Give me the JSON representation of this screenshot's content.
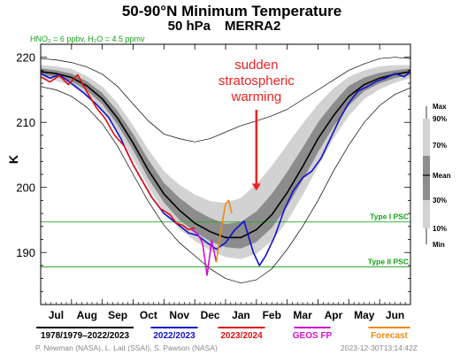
{
  "chart_data": {
    "type": "line",
    "title": "50-90°N Minimum Temperature",
    "subtitle_left": "50 hPa",
    "subtitle_right": "MERRA2",
    "conditions_label": "HNO₃ = 6 ppbv, H₂O = 4.5 ppmv",
    "ylabel": "K",
    "ylim": [
      182,
      222
    ],
    "yticks": [
      190,
      200,
      210,
      220
    ],
    "months": [
      "Jul",
      "Aug",
      "Sep",
      "Oct",
      "Nov",
      "Dec",
      "Jan",
      "Feb",
      "Mar",
      "Apr",
      "May",
      "Jun"
    ],
    "x_unit": "month index (0 = 1 Jul)",
    "psc_lines": [
      {
        "label": "Type I PSC",
        "value": 194.7
      },
      {
        "label": "Type II PSC",
        "value": 187.8
      }
    ],
    "percentile_legend": {
      "labels": [
        "Max",
        "90%",
        "70%",
        "Mean",
        "30%",
        "10%",
        "Min"
      ]
    },
    "annotation": {
      "text": [
        "sudden",
        "stratospheric",
        "warming"
      ],
      "x": 7.0,
      "y": 199.5
    },
    "climatology": {
      "x": [
        0,
        0.5,
        1,
        1.5,
        2,
        2.5,
        3,
        3.5,
        4,
        4.5,
        5,
        5.5,
        6,
        6.5,
        7,
        7.5,
        8,
        8.5,
        9,
        9.5,
        10,
        10.5,
        11,
        11.5,
        12
      ],
      "mean": [
        217.8,
        217.5,
        216.9,
        215.6,
        213.6,
        210.6,
        206.8,
        202.6,
        199.0,
        196.5,
        194.5,
        193.2,
        192.3,
        192.3,
        193.5,
        195.8,
        199.2,
        203.2,
        207.5,
        211.0,
        214.0,
        215.8,
        216.8,
        217.4,
        217.8
      ],
      "p10": [
        216.8,
        216.4,
        215.6,
        214.1,
        211.8,
        208.5,
        204.4,
        200.0,
        196.3,
        193.6,
        191.8,
        190.3,
        189.3,
        189.0,
        189.8,
        191.8,
        194.8,
        198.8,
        203.2,
        207.5,
        211.0,
        213.6,
        215.1,
        216.1,
        216.8
      ],
      "p30": [
        217.3,
        217.0,
        216.3,
        214.9,
        212.8,
        209.6,
        205.7,
        201.3,
        197.7,
        195.0,
        193.2,
        191.7,
        190.8,
        190.6,
        191.6,
        193.8,
        197.1,
        201.1,
        205.4,
        209.3,
        212.6,
        214.8,
        216.0,
        216.8,
        217.3
      ],
      "p70": [
        218.3,
        218.0,
        217.5,
        216.3,
        214.5,
        211.7,
        208.2,
        204.2,
        200.7,
        198.4,
        196.6,
        195.3,
        194.4,
        194.7,
        196.3,
        199.0,
        202.4,
        206.1,
        210.0,
        213.0,
        215.6,
        216.9,
        217.6,
        218.0,
        218.3
      ],
      "p90": [
        218.8,
        218.6,
        218.2,
        217.1,
        215.5,
        212.9,
        209.5,
        205.8,
        202.5,
        200.4,
        198.9,
        197.9,
        197.6,
        198.4,
        200.5,
        203.3,
        206.6,
        209.8,
        212.8,
        215.2,
        217.0,
        218.0,
        218.6,
        218.8,
        218.8
      ],
      "max": [
        219.8,
        219.6,
        219.2,
        218.5,
        217.4,
        215.5,
        212.8,
        210.2,
        208.2,
        207.5,
        207.0,
        207.5,
        208.5,
        209.5,
        210.2,
        211.0,
        212.0,
        213.5,
        215.0,
        216.5,
        218.0,
        219.0,
        219.8,
        220.0,
        219.8
      ],
      "min": [
        215.5,
        215.0,
        214.0,
        212.3,
        209.8,
        206.3,
        202.0,
        197.8,
        194.2,
        191.5,
        189.5,
        187.5,
        186.0,
        185.3,
        185.8,
        187.5,
        190.5,
        194.0,
        198.0,
        202.5,
        206.5,
        210.0,
        212.6,
        214.3,
        215.3
      ]
    },
    "series": [
      {
        "name": "2022/2023",
        "color": "#1010d0",
        "x": [
          0.0,
          0.3,
          0.6,
          1.0,
          1.4,
          1.8,
          2.2,
          2.6,
          3.0,
          3.3,
          3.6,
          4.0,
          4.4,
          4.8,
          5.1,
          5.4,
          5.7,
          6.0,
          6.3,
          6.6,
          6.9,
          7.1,
          7.3,
          7.6,
          7.9,
          8.2,
          8.5,
          8.8,
          9.1,
          9.4,
          9.7,
          10.0,
          10.3,
          10.6,
          10.9,
          11.2,
          11.5,
          11.8,
          12.0
        ],
        "y": [
          217.5,
          216.8,
          217.3,
          216.0,
          214.5,
          212.8,
          210.8,
          207.5,
          203.5,
          201.0,
          198.5,
          196.0,
          194.5,
          193.0,
          192.6,
          191.5,
          190.5,
          191.5,
          193.5,
          194.8,
          190.0,
          188.0,
          189.5,
          192.5,
          196.5,
          199.5,
          201.5,
          202.5,
          204.5,
          207.5,
          210.5,
          213.0,
          214.8,
          215.5,
          216.3,
          216.8,
          217.5,
          217.0,
          217.8
        ]
      },
      {
        "name": "2023/2024",
        "color": "#e01010",
        "x": [
          0.0,
          0.3,
          0.6,
          0.9,
          1.2,
          1.5,
          1.8,
          2.1,
          2.4,
          2.7,
          3.0,
          3.3,
          3.6,
          3.9,
          4.2,
          4.4,
          4.6,
          4.8,
          5.0
        ],
        "y": [
          217.0,
          216.2,
          217.2,
          215.8,
          217.3,
          214.7,
          212.3,
          210.5,
          208.0,
          206.4,
          203.5,
          201.0,
          198.5,
          196.7,
          195.8,
          194.5,
          194.2,
          193.5,
          193.8
        ]
      },
      {
        "name": "GEOS FP",
        "color": "#d010d0",
        "x": [
          4.9,
          5.1,
          5.25,
          5.4,
          5.55,
          5.7
        ],
        "y": [
          193.5,
          192.8,
          191.5,
          186.5,
          191.8,
          188.5
        ]
      },
      {
        "name": "Forecast",
        "color": "#f08a10",
        "x": [
          5.7,
          5.85,
          6.0,
          6.1,
          6.2
        ],
        "y": [
          188.5,
          193.5,
          197.5,
          198.0,
          196.0
        ]
      }
    ],
    "legend": [
      "1978/1979–2022/2023",
      "2022/2023",
      "2023/2024",
      "GEOS FP",
      "Forecast"
    ],
    "legend_colors": [
      "#000000",
      "#1010d0",
      "#e01010",
      "#d010d0",
      "#f08a10"
    ],
    "credit": "P. Newman (NASA), L. Lait (SSAI), S. Pawson (NASA)",
    "timestamp": "2023-12-30T13:14:42Z"
  }
}
